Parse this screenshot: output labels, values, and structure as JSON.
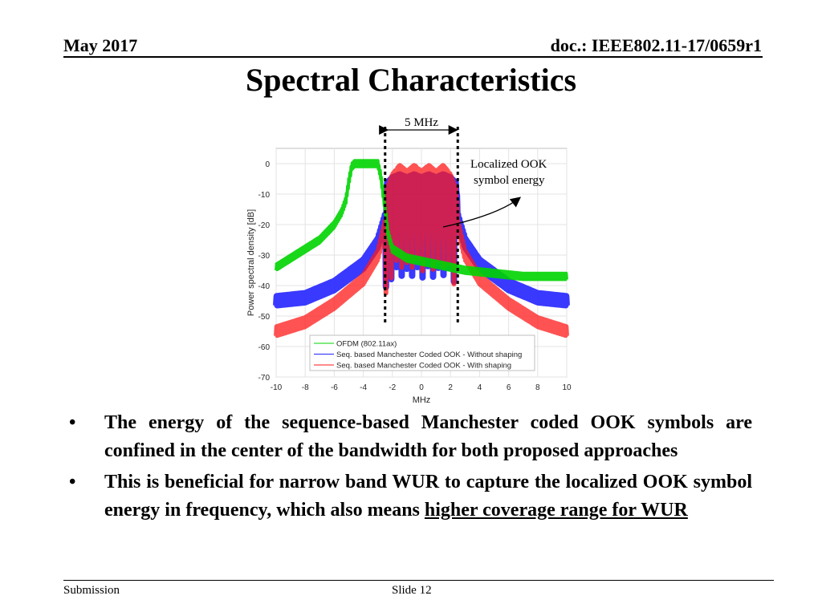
{
  "header": {
    "date": "May 2017",
    "doc": "doc.: IEEE802.11-17/0659r1"
  },
  "title": "Spectral Characteristics",
  "figure": {
    "bandwidth_label": "5 MHz",
    "annotation_line1": "Localized OOK",
    "annotation_line2": "symbol energy"
  },
  "chart_data": {
    "type": "line",
    "title": "",
    "xlabel": "MHz",
    "ylabel": "Power spectral density [dB]",
    "xlim": [
      -10,
      10
    ],
    "ylim": [
      -70,
      5
    ],
    "xticks": [
      "-10",
      "-8",
      "-6",
      "-4",
      "-2",
      "0",
      "2",
      "4",
      "6",
      "8",
      "10"
    ],
    "yticks": [
      "0",
      "-10",
      "-20",
      "-30",
      "-40",
      "-50",
      "-60",
      "-70"
    ],
    "grid": true,
    "legend_position": "bottom-center",
    "series": [
      {
        "name": "OFDM (802.11ax)",
        "color": "#00d400",
        "x": [
          -10,
          -9,
          -8,
          -7,
          -6,
          -5.5,
          -5.2,
          -5,
          -4.8,
          -4.6,
          -4,
          -3,
          -2.8,
          -2.5,
          -2.3,
          -2,
          -1,
          0,
          1,
          2,
          3,
          4,
          5,
          6,
          7,
          8,
          9,
          10
        ],
        "y": [
          -34,
          -31,
          -28,
          -25,
          -20,
          -16,
          -12,
          -6,
          -1,
          0,
          0,
          0,
          -4,
          -15,
          -23,
          -28,
          -31,
          -32,
          -33,
          -34,
          -35,
          -35.5,
          -36,
          -36.5,
          -37,
          -37,
          -37,
          -37
        ]
      },
      {
        "name": "Seq. based Manchester Coded OOK - Without shaping",
        "color": "#2424ff",
        "x": [
          -10,
          -8,
          -6,
          -4,
          -3,
          -2.5,
          -2.4,
          -2,
          -1.5,
          -1,
          -0.5,
          0,
          0.5,
          1,
          1.5,
          2,
          2.4,
          2.5,
          3,
          4,
          6,
          8,
          10
        ],
        "y": [
          -45,
          -44,
          -40,
          -33,
          -26,
          -18,
          -8,
          -6,
          -5,
          -6,
          -5,
          -6,
          -5,
          -6,
          -5,
          -6,
          -8,
          -18,
          -26,
          -33,
          -40,
          -44,
          -45
        ]
      },
      {
        "name": "Seq. based Manchester Coded OOK - With shaping",
        "color": "#ff1a1a",
        "x": [
          -10,
          -8,
          -6,
          -4,
          -3,
          -2.5,
          -2.4,
          -2,
          -1.5,
          -1,
          -0.5,
          0,
          0.5,
          1,
          1.5,
          2,
          2.4,
          2.5,
          3,
          4,
          6,
          8,
          10
        ],
        "y": [
          -55,
          -52,
          -46,
          -38,
          -30,
          -20,
          -10,
          -5,
          -2,
          -4,
          -2,
          -4,
          -2,
          -4,
          -2,
          -5,
          -10,
          -20,
          -30,
          -38,
          -46,
          -52,
          -55
        ]
      }
    ]
  },
  "bullets": [
    {
      "text": "The energy of the sequence-based Manchester coded OOK symbols are confined in the center of the bandwidth for both proposed approaches"
    },
    {
      "text_plain": "This is beneficial for narrow band WUR to capture the localized OOK symbol energy in frequency, which also means ",
      "text_underlined": "higher coverage range for WUR"
    }
  ],
  "bullet_symbol": "•",
  "footer": {
    "left": "Submission",
    "center": "Slide 12"
  }
}
